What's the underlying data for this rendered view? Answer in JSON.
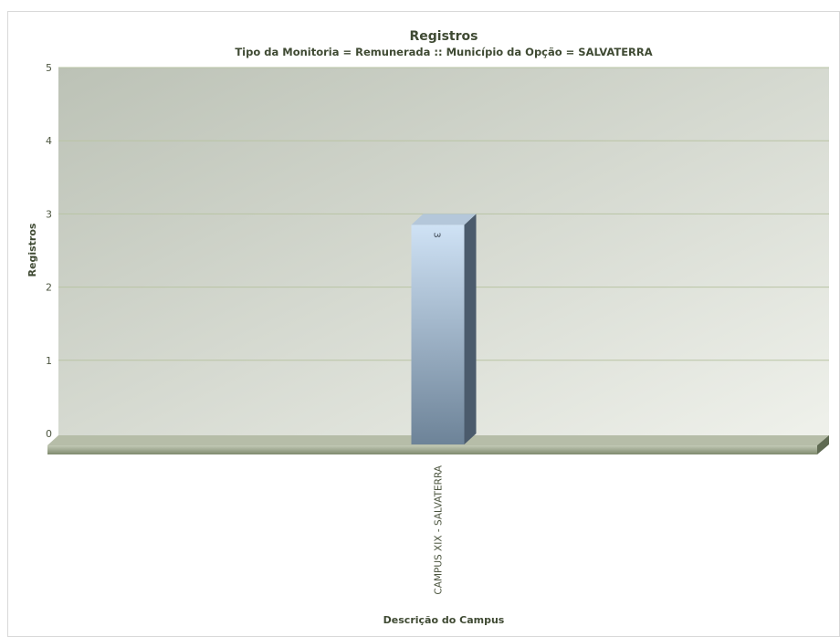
{
  "chart_data": {
    "type": "bar3d",
    "title": "Registros",
    "subtitle": "Tipo da Monitoria = Remunerada :: Município da Opção = SALVATERRA",
    "categories": [
      "CAMPUS XIX  -  SALVATERRA"
    ],
    "values": [
      3
    ],
    "color": "#9db4cb",
    "ylim": [
      0,
      5
    ],
    "yticks": [
      0,
      1,
      2,
      3,
      4,
      5
    ],
    "grid": true,
    "ylabel": "Registros",
    "xlabel": "Descrição do Campus"
  }
}
